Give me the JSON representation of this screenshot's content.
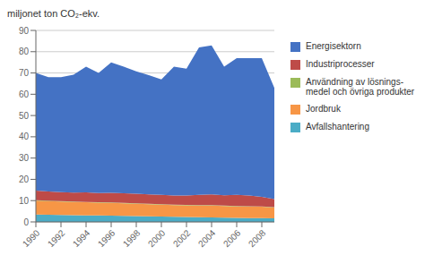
{
  "chart_data": {
    "type": "area",
    "stacked": true,
    "ylabel": "miljonet ton CO₂-ekv.",
    "x": [
      1990,
      1991,
      1992,
      1993,
      1994,
      1995,
      1996,
      1997,
      1998,
      1999,
      2000,
      2001,
      2002,
      2003,
      2004,
      2005,
      2006,
      2007,
      2008,
      2009
    ],
    "series": [
      {
        "name": "Avfallshantering",
        "color": "#4BACC6",
        "values": [
          3.5,
          3.4,
          3.3,
          3.2,
          3.1,
          3.0,
          2.9,
          2.8,
          2.7,
          2.6,
          2.5,
          2.4,
          2.3,
          2.2,
          2.1,
          2.0,
          1.9,
          1.8,
          1.8,
          1.7
        ]
      },
      {
        "name": "Jordbruk",
        "color": "#F79646",
        "values": [
          6.5,
          6.4,
          6.3,
          6.2,
          6.1,
          6.0,
          6.0,
          5.9,
          5.8,
          5.7,
          5.6,
          5.5,
          5.5,
          5.5,
          5.6,
          5.5,
          5.4,
          5.4,
          5.3,
          5.0
        ]
      },
      {
        "name": "Användning av lösnings-\nmedel och övriga produkter",
        "color": "#9BBB59",
        "values": [
          0.2,
          0.2,
          0.2,
          0.2,
          0.2,
          0.2,
          0.2,
          0.2,
          0.2,
          0.2,
          0.2,
          0.2,
          0.2,
          0.2,
          0.2,
          0.2,
          0.2,
          0.2,
          0.2,
          0.2
        ]
      },
      {
        "name": "Industriprocesser",
        "color": "#BE4B48",
        "values": [
          4.5,
          4.3,
          4.2,
          4.2,
          4.5,
          4.4,
          4.6,
          4.6,
          4.5,
          4.4,
          4.4,
          4.3,
          4.4,
          4.8,
          5.0,
          4.8,
          5.2,
          5.0,
          4.5,
          3.8
        ]
      },
      {
        "name": "Energisektorn",
        "color": "#4472C4",
        "values": [
          55.3,
          53.7,
          54.0,
          55.4,
          59.1,
          56.4,
          61.3,
          59.5,
          57.6,
          56.1,
          54.3,
          60.6,
          59.6,
          69.3,
          70.1,
          60.5,
          64.3,
          64.6,
          65.2,
          52.3
        ]
      }
    ],
    "xlim": [
      1990,
      2009
    ],
    "xticks": [
      1990,
      1992,
      1994,
      1996,
      1998,
      2000,
      2002,
      2004,
      2006,
      2008
    ],
    "ylim": [
      0,
      90
    ],
    "yticks": [
      0,
      10,
      20,
      30,
      40,
      50,
      60,
      70,
      80,
      90
    ],
    "grid": true,
    "legend": "right"
  }
}
